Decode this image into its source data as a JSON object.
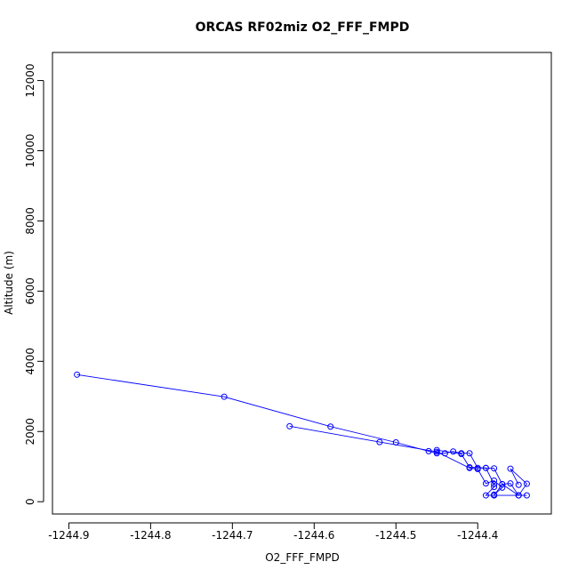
{
  "chart_data": {
    "type": "line",
    "title": "ORCAS RF02miz O2_FFF_FMPD",
    "xlabel": "O2_FFF_FMPD",
    "ylabel": "Altitude (m)",
    "xlim": [
      -1244.92,
      -1244.31
    ],
    "ylim": [
      -350,
      12800
    ],
    "x_ticks": [
      -1244.9,
      -1244.8,
      -1244.7,
      -1244.6,
      -1244.5,
      -1244.4
    ],
    "x_tick_labels": [
      "-1244.9",
      "-1244.8",
      "-1244.7",
      "-1244.6",
      "-1244.5",
      "-1244.4"
    ],
    "y_ticks": [
      0,
      2000,
      4000,
      6000,
      8000,
      10000,
      12000
    ],
    "y_tick_labels": [
      "0",
      "2000",
      "4000",
      "6000",
      "8000",
      "10000",
      "12000"
    ],
    "marker": "open-circle",
    "color": "#0000ff",
    "grid": false,
    "series": [
      {
        "x": [
          -1244.89,
          -1244.71,
          -1244.58,
          -1244.5,
          -1244.46,
          -1244.45,
          -1244.44,
          -1244.43,
          -1244.42,
          -1244.41,
          -1244.4,
          -1244.39,
          -1244.38,
          -1244.37,
          -1244.36,
          -1244.35,
          -1244.34
        ],
        "y": [
          3620,
          2990,
          2140,
          1690,
          1440,
          1380,
          1380,
          1430,
          1380,
          1380,
          960,
          960,
          950,
          500,
          520,
          180,
          180
        ]
      },
      {
        "x": [
          -1244.63,
          -1244.52,
          -1244.45,
          -1244.41,
          -1244.4,
          -1244.39,
          -1244.38,
          -1244.37,
          -1244.38,
          -1244.38,
          -1244.35,
          -1244.34,
          -1244.36,
          -1244.35
        ],
        "y": [
          2150,
          1700,
          1420,
          960,
          930,
          520,
          600,
          400,
          200,
          180,
          180,
          510,
          940,
          480
        ]
      },
      {
        "x": [
          -1244.45,
          -1244.42,
          -1244.41,
          -1244.39,
          -1244.38,
          -1244.38,
          -1244.39,
          -1244.38,
          -1244.37,
          -1244.35
        ],
        "y": [
          1470,
          1360,
          980,
          960,
          500,
          420,
          180,
          180,
          500,
          180
        ]
      }
    ]
  }
}
